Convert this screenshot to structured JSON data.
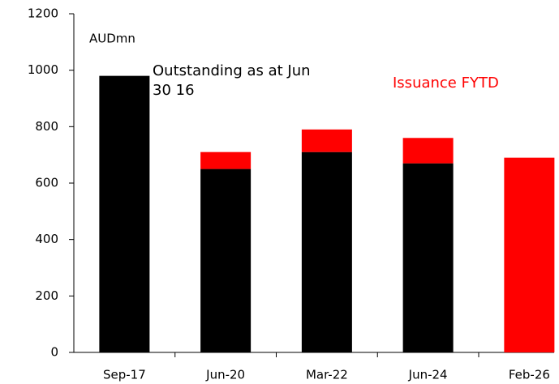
{
  "chart_data": {
    "type": "stacked-bar",
    "y_label": "AUDmn",
    "categories": [
      "Sep-17",
      "Jun-20",
      "Mar-22",
      "Jun-24",
      "Feb-26"
    ],
    "series": [
      {
        "name": "Outstanding as at Jun 30 16",
        "color": "#000000",
        "values": [
          980,
          650,
          710,
          670,
          null
        ]
      },
      {
        "name": "Issuance FYTD",
        "color": "#ff0000",
        "values": [
          null,
          60,
          80,
          90,
          690
        ]
      }
    ],
    "ylim": [
      0,
      1200
    ],
    "yticks": [
      0,
      200,
      400,
      600,
      800,
      1000,
      1200
    ],
    "grid": false
  }
}
